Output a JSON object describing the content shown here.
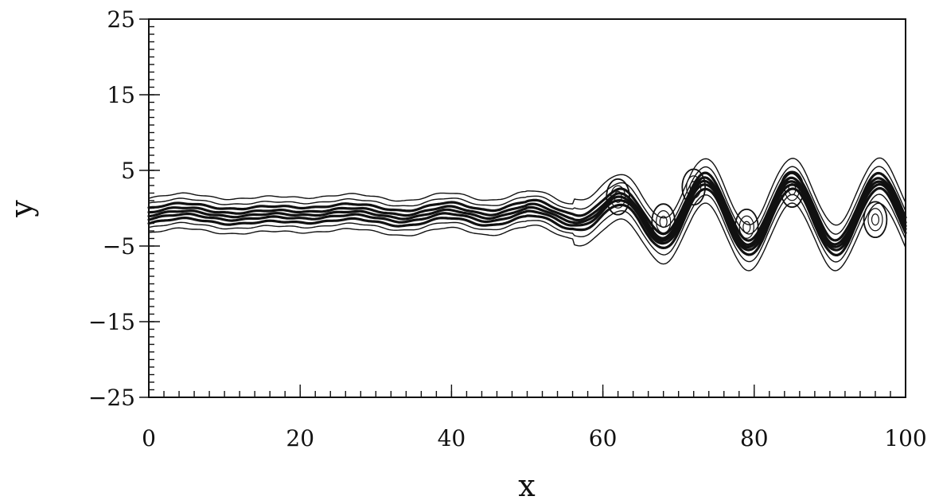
{
  "chart_data": {
    "type": "contour",
    "title": "",
    "xlabel": "x",
    "ylabel": "y",
    "xlim": [
      0,
      100
    ],
    "ylim": [
      -25,
      25
    ],
    "x_ticks": [
      0,
      20,
      40,
      60,
      80,
      100
    ],
    "x_tick_labels": [
      "0",
      "20",
      "40",
      "60",
      "80",
      "100"
    ],
    "y_ticks": [
      25,
      15,
      5,
      -5,
      -15,
      -25
    ],
    "y_tick_labels": [
      "25",
      "15",
      "5",
      "−5",
      "−15",
      "−25"
    ],
    "x_minor_step": 2,
    "y_minor_step": 1,
    "grid": false,
    "line_color": "#111111",
    "contour_levels": [
      {
        "offset": 2.3,
        "bulge": 1.3
      },
      {
        "offset": 1.6,
        "bulge": 1.15
      },
      {
        "offset": 1.0,
        "bulge": 1.0
      },
      {
        "offset": 0.45,
        "bulge": 0.9
      },
      {
        "offset": 0.0,
        "bulge": 0.8
      },
      {
        "offset": -0.45,
        "bulge": 0.9
      },
      {
        "offset": -1.0,
        "bulge": 1.0
      },
      {
        "offset": -1.6,
        "bulge": 1.15
      },
      {
        "offset": -2.3,
        "bulge": 1.3
      }
    ],
    "vortex_centers": [
      {
        "x": 62,
        "y": 1.5
      },
      {
        "x": 68,
        "y": -1.8
      },
      {
        "x": 72,
        "y": 2.8
      },
      {
        "x": 79,
        "y": -2.5
      },
      {
        "x": 85,
        "y": 2.5
      },
      {
        "x": 96,
        "y": -1.5
      }
    ]
  }
}
